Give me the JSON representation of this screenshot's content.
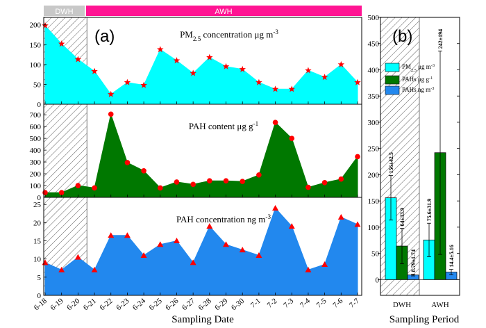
{
  "period_bands": {
    "dwh": "DWH",
    "awh": "AWH",
    "dwh_color": "#c8c8c8",
    "awh_color": "#ff1493"
  },
  "panel_a_label": "(a)",
  "panel_b_label": "(b)",
  "x_axis_title": "Sampling Date",
  "b_x_axis_title": "Sampling Period",
  "chart_data": [
    {
      "type": "area",
      "panel": "a-top",
      "title": "PM2.5 concentration μg m-3",
      "title_main": "PM",
      "title_sub": "2.5",
      "title_rest": " concentration μg m",
      "title_sup": "-3",
      "fill_color": "#00ffff",
      "marker": "star",
      "marker_color": "#ff0000",
      "categories": [
        "6-18",
        "6-19",
        "6-20",
        "6-21",
        "6-22",
        "6-23",
        "6-24",
        "6-25",
        "6-26",
        "6-27",
        "6-28",
        "6-29",
        "6-30",
        "7-1",
        "7-2",
        "7-3",
        "7-4",
        "7-5",
        "7-6",
        "7-7"
      ],
      "values": [
        198,
        152,
        113,
        83,
        25,
        55,
        48,
        138,
        110,
        78,
        118,
        95,
        88,
        55,
        38,
        38,
        85,
        68,
        100,
        55
      ],
      "ylim": [
        0,
        210
      ],
      "yticks": [
        0,
        50,
        100,
        150,
        200
      ],
      "ytick_labels": [
        "0",
        "50",
        "100",
        "150",
        "200"
      ],
      "dwh_range": [
        "6-18",
        "6-20"
      ]
    },
    {
      "type": "area",
      "panel": "a-middle",
      "title": "PAH content μg g-1",
      "title_main": "PAH content μg g",
      "title_sup": "-1",
      "fill_color": "#007800",
      "marker": "circle",
      "marker_color": "#ff0000",
      "categories": [
        "6-18",
        "6-19",
        "6-20",
        "6-21",
        "6-22",
        "6-23",
        "6-24",
        "6-25",
        "6-26",
        "6-27",
        "6-28",
        "6-29",
        "6-30",
        "7-1",
        "7-2",
        "7-3",
        "7-4",
        "7-5",
        "7-6",
        "7-7"
      ],
      "values": [
        40,
        40,
        100,
        80,
        705,
        295,
        225,
        80,
        130,
        110,
        140,
        140,
        135,
        190,
        635,
        500,
        85,
        125,
        155,
        345
      ],
      "ylim": [
        0,
        760
      ],
      "yticks": [
        0,
        100,
        200,
        300,
        400,
        500,
        600,
        700
      ],
      "ytick_labels": [
        "0",
        "100",
        "200",
        "300",
        "400",
        "500",
        "600",
        "700"
      ],
      "dwh_range": [
        "6-18",
        "6-20"
      ]
    },
    {
      "type": "area",
      "panel": "a-bottom",
      "title": "PAH concentration ng m-3",
      "title_main": "PAH concentration ng m",
      "title_sup": "-3",
      "fill_color": "#2288ee",
      "marker": "triangle",
      "marker_color": "#ff0000",
      "categories": [
        "6-18",
        "6-19",
        "6-20",
        "6-21",
        "6-22",
        "6-23",
        "6-24",
        "6-25",
        "6-26",
        "6-27",
        "6-28",
        "6-29",
        "6-30",
        "7-1",
        "7-2",
        "7-3",
        "7-4",
        "7-5",
        "7-6",
        "7-7"
      ],
      "values": [
        9,
        7,
        10.5,
        7,
        16.5,
        16.5,
        11,
        14,
        15,
        9,
        19,
        14,
        12.5,
        11,
        24,
        19,
        7,
        8.5,
        21.5,
        19.5
      ],
      "ylim": [
        0,
        26
      ],
      "yticks": [
        0,
        5,
        10,
        15,
        20,
        25
      ],
      "ytick_labels": [
        "0",
        "5",
        "10",
        "15",
        "20",
        "25"
      ],
      "dwh_range": [
        "6-18",
        "6-20"
      ]
    },
    {
      "type": "bar",
      "panel": "b",
      "categories": [
        "DWH",
        "AWH"
      ],
      "ylim": [
        -30,
        500
      ],
      "yticks": [
        0,
        50,
        100,
        150,
        200,
        250,
        300,
        350,
        400,
        450,
        500
      ],
      "ytick_labels": [
        "0",
        "50",
        "100",
        "150",
        "200",
        "250",
        "300",
        "350",
        "400",
        "450",
        "500"
      ],
      "legend_position": "upper-left",
      "series": [
        {
          "legend": "PM2.5 μg m-3",
          "legend_main": "PM",
          "legend_sub": "2.5",
          "legend_rest": " μg m",
          "legend_sup": "-3",
          "color": "#00ffff",
          "values": [
            156,
            75.6
          ],
          "errors": [
            42.5,
            31.9
          ],
          "labels": [
            "156±42.5",
            "75.6±31.9"
          ]
        },
        {
          "legend": "PAHs μg g-1",
          "legend_main": "PAHs μg g",
          "legend_sup": "-1",
          "color": "#007800",
          "values": [
            64,
            242
          ],
          "errors": [
            33.9,
            194
          ],
          "labels": [
            "64±33.9",
            "242±194"
          ]
        },
        {
          "legend": "PAHs ng m-3",
          "legend_main": "PAHs ng m",
          "legend_sup": "-3",
          "color": "#2288ee",
          "values": [
            8.79,
            14.4
          ],
          "errors": [
            1.74,
            5.16
          ],
          "labels": [
            "8.79±1.74",
            "14.4±5.16"
          ]
        }
      ]
    }
  ]
}
